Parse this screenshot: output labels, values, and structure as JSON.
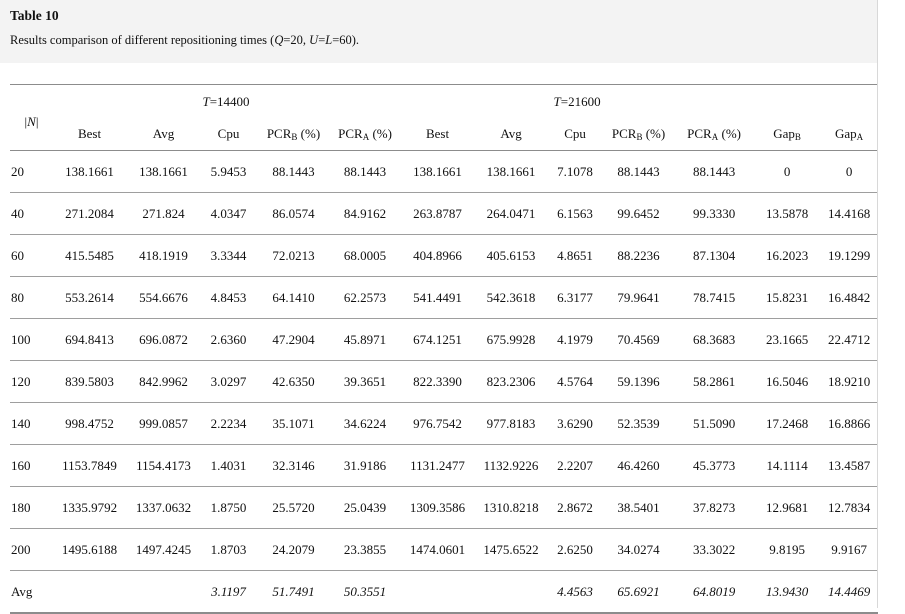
{
  "table_label": "Table 10",
  "caption_parts": [
    {
      "t": "Results comparison of different repositioning times ("
    },
    {
      "t": "Q",
      "i": true
    },
    {
      "t": "=20, "
    },
    {
      "t": "U",
      "i": true
    },
    {
      "t": "="
    },
    {
      "t": "L",
      "i": true
    },
    {
      "t": "=60)."
    }
  ],
  "colors": {
    "caption_block_bg": "#f3f3f3",
    "rule_dark": "#8c8c8c",
    "rule_light": "#9e9e9e",
    "text": "#111111"
  },
  "header": {
    "n_label_parts": [
      {
        "t": "|"
      },
      {
        "t": "N",
        "i": true
      },
      {
        "t": "|"
      }
    ],
    "groups": [
      {
        "label_parts": [
          {
            "t": "T",
            "i": true
          },
          {
            "t": "=14400"
          }
        ],
        "span": 5
      },
      {
        "label_parts": [
          {
            "t": "T",
            "i": true
          },
          {
            "t": "=21600"
          }
        ],
        "span": 5
      }
    ],
    "ungrouped_span": 2,
    "columns": [
      {
        "text": "Best"
      },
      {
        "text": "Avg"
      },
      {
        "text": "Cpu"
      },
      {
        "base": "PCR",
        "sub": "B",
        "suffix": " (%)"
      },
      {
        "base": "PCR",
        "sub": "A",
        "suffix": " (%)"
      },
      {
        "text": "Best"
      },
      {
        "text": "Avg"
      },
      {
        "text": "Cpu"
      },
      {
        "base": "PCR",
        "sub": "B",
        "suffix": " (%)"
      },
      {
        "base": "PCR",
        "sub": "A",
        "suffix": " (%)"
      },
      {
        "base": "Gap",
        "sub": "B",
        "suffix": ""
      },
      {
        "base": "Gap",
        "sub": "A",
        "suffix": ""
      }
    ]
  },
  "rows": [
    {
      "label": "20",
      "italic": false,
      "cells": [
        "138.1661",
        "138.1661",
        "5.9453",
        "88.1443",
        "88.1443",
        "138.1661",
        "138.1661",
        "7.1078",
        "88.1443",
        "88.1443",
        "0",
        "0"
      ]
    },
    {
      "label": "40",
      "italic": false,
      "cells": [
        "271.2084",
        "271.824",
        "4.0347",
        "86.0574",
        "84.9162",
        "263.8787",
        "264.0471",
        "6.1563",
        "99.6452",
        "99.3330",
        "13.5878",
        "14.4168"
      ]
    },
    {
      "label": "60",
      "italic": false,
      "cells": [
        "415.5485",
        "418.1919",
        "3.3344",
        "72.0213",
        "68.0005",
        "404.8966",
        "405.6153",
        "4.8651",
        "88.2236",
        "87.1304",
        "16.2023",
        "19.1299"
      ]
    },
    {
      "label": "80",
      "italic": false,
      "cells": [
        "553.2614",
        "554.6676",
        "4.8453",
        "64.1410",
        "62.2573",
        "541.4491",
        "542.3618",
        "6.3177",
        "79.9641",
        "78.7415",
        "15.8231",
        "16.4842"
      ]
    },
    {
      "label": "100",
      "italic": false,
      "cells": [
        "694.8413",
        "696.0872",
        "2.6360",
        "47.2904",
        "45.8971",
        "674.1251",
        "675.9928",
        "4.1979",
        "70.4569",
        "68.3683",
        "23.1665",
        "22.4712"
      ]
    },
    {
      "label": "120",
      "italic": false,
      "cells": [
        "839.5803",
        "842.9962",
        "3.0297",
        "42.6350",
        "39.3651",
        "822.3390",
        "823.2306",
        "4.5764",
        "59.1396",
        "58.2861",
        "16.5046",
        "18.9210"
      ]
    },
    {
      "label": "140",
      "italic": false,
      "cells": [
        "998.4752",
        "999.0857",
        "2.2234",
        "35.1071",
        "34.6224",
        "976.7542",
        "977.8183",
        "3.6290",
        "52.3539",
        "51.5090",
        "17.2468",
        "16.8866"
      ]
    },
    {
      "label": "160",
      "italic": false,
      "cells": [
        "1153.7849",
        "1154.4173",
        "1.4031",
        "32.3146",
        "31.9186",
        "1131.2477",
        "1132.9226",
        "2.2207",
        "46.4260",
        "45.3773",
        "14.1114",
        "13.4587"
      ]
    },
    {
      "label": "180",
      "italic": false,
      "cells": [
        "1335.9792",
        "1337.0632",
        "1.8750",
        "25.5720",
        "25.0439",
        "1309.3586",
        "1310.8218",
        "2.8672",
        "38.5401",
        "37.8273",
        "12.9681",
        "12.7834"
      ]
    },
    {
      "label": "200",
      "italic": false,
      "cells": [
        "1495.6188",
        "1497.4245",
        "1.8703",
        "24.2079",
        "23.3855",
        "1474.0601",
        "1475.6522",
        "2.6250",
        "34.0274",
        "33.3022",
        "9.8195",
        "9.9167"
      ]
    },
    {
      "label": "Avg",
      "italic": true,
      "cells": [
        "",
        "",
        "3.1197",
        "51.7491",
        "50.3551",
        "",
        "",
        "4.4563",
        "65.6921",
        "64.8019",
        "13.9430",
        "14.4469"
      ]
    }
  ]
}
